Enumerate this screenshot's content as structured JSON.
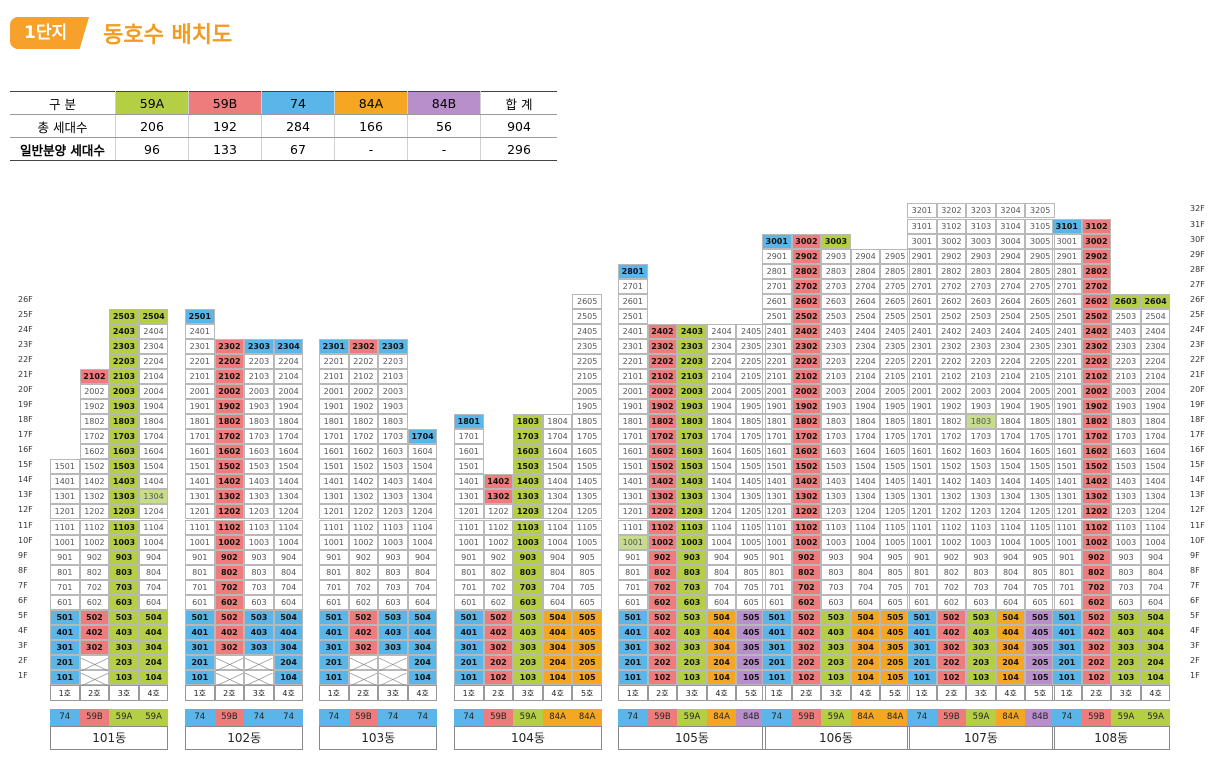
{
  "header": {
    "badge": "1단지",
    "title": "동호수 배치도"
  },
  "colors": {
    "59A": "#b5cf45",
    "59B": "#ef7c7c",
    "74": "#5ab6e9",
    "84A": "#f5a623",
    "84B": "#b98fcb",
    "light": "#c8dc8e"
  },
  "summary": {
    "headers": [
      "구 분",
      "59A",
      "59B",
      "74",
      "84A",
      "84B",
      "합 계"
    ],
    "rows": [
      [
        "총 세대수",
        "206",
        "192",
        "284",
        "166",
        "56",
        "904"
      ],
      [
        "일반분양 세대수",
        "96",
        "133",
        "67",
        "-",
        "-",
        "296"
      ]
    ]
  },
  "floor_labels": [
    "1F",
    "2F",
    "3F",
    "4F",
    "5F",
    "6F",
    "7F",
    "8F",
    "9F",
    "10F",
    "11F",
    "12F",
    "13F",
    "14F",
    "15F",
    "16F",
    "17F",
    "18F",
    "19F",
    "20F",
    "21F",
    "22F",
    "23F",
    "24F",
    "25F",
    "26F",
    "27F",
    "28F",
    "29F",
    "30F",
    "31F",
    "32F"
  ],
  "buildings": [
    {
      "name": "101동",
      "types": [
        "74",
        "59B",
        "59A",
        "59A"
      ],
      "heights": [
        15,
        21,
        25,
        25
      ],
      "units": {
        "1": {
          "1": "74",
          "2": "59B",
          "3": "59A",
          "4": "59A"
        }
      },
      "hl": {
        "2": [
          21
        ],
        "3": [
          3,
          4,
          5,
          6,
          7,
          8,
          9,
          10,
          11,
          12,
          13,
          14,
          15,
          16,
          17,
          18,
          19,
          20,
          21,
          22,
          23,
          24,
          25
        ],
        "4": [
          25
        ]
      },
      "light": {
        "4": [
          13
        ]
      },
      "hidden": {
        "1": [
          2
        ],
        "2": [
          2,
          1
        ],
        "3": [],
        "4": []
      },
      "blankNums": {
        "2": [
          1,
          2
        ],
        "1": [
          2
        ]
      }
    },
    {
      "name": "102동",
      "types": [
        "74",
        "59B",
        "74",
        "74"
      ],
      "heights": [
        25,
        23,
        23,
        23
      ],
      "units": {},
      "hl": {},
      "light": {},
      "hidden": {},
      "blankNums": {}
    },
    {
      "name": "103동",
      "types": [
        "74",
        "59B",
        "74",
        "74"
      ],
      "heights": [
        23,
        23,
        23,
        17
      ],
      "units": {},
      "hl": {},
      "light": {},
      "hidden": {},
      "blankNums": {}
    },
    {
      "name": "104동",
      "types": [
        "74",
        "59B",
        "59A",
        "84A",
        "84A"
      ],
      "heights": [
        18,
        14,
        18,
        18,
        26
      ],
      "units": {},
      "hl": {},
      "light": {},
      "hidden": {},
      "blankNums": {}
    },
    {
      "name": "105동",
      "types": [
        "74",
        "59B",
        "59A",
        "84A",
        "84B"
      ],
      "heights": [
        28,
        24,
        24,
        24,
        24
      ],
      "units": {},
      "hl": {},
      "light": {},
      "hidden": {},
      "blankNums": {}
    },
    {
      "name": "106동",
      "types": [
        "74",
        "59B",
        "59A",
        "84A",
        "84A"
      ],
      "heights": [
        30,
        30,
        30,
        29,
        29
      ],
      "units": {},
      "hl": {},
      "light": {},
      "hidden": {},
      "blankNums": {}
    },
    {
      "name": "107동",
      "types": [
        "74",
        "59B",
        "59A",
        "84A",
        "84B"
      ],
      "heights": [
        32,
        32,
        32,
        32,
        32
      ],
      "units": {},
      "hl": {},
      "light": {},
      "hidden": {},
      "blankNums": {}
    },
    {
      "name": "108동",
      "types": [
        "74",
        "59B",
        "59A",
        "59A"
      ],
      "heights": [
        31,
        31,
        26,
        26
      ],
      "units": {},
      "hl": {},
      "light": {},
      "hidden": {},
      "blankNums": {}
    }
  ],
  "unit_labels": [
    "1호",
    "2호",
    "3호",
    "4호",
    "5호"
  ]
}
